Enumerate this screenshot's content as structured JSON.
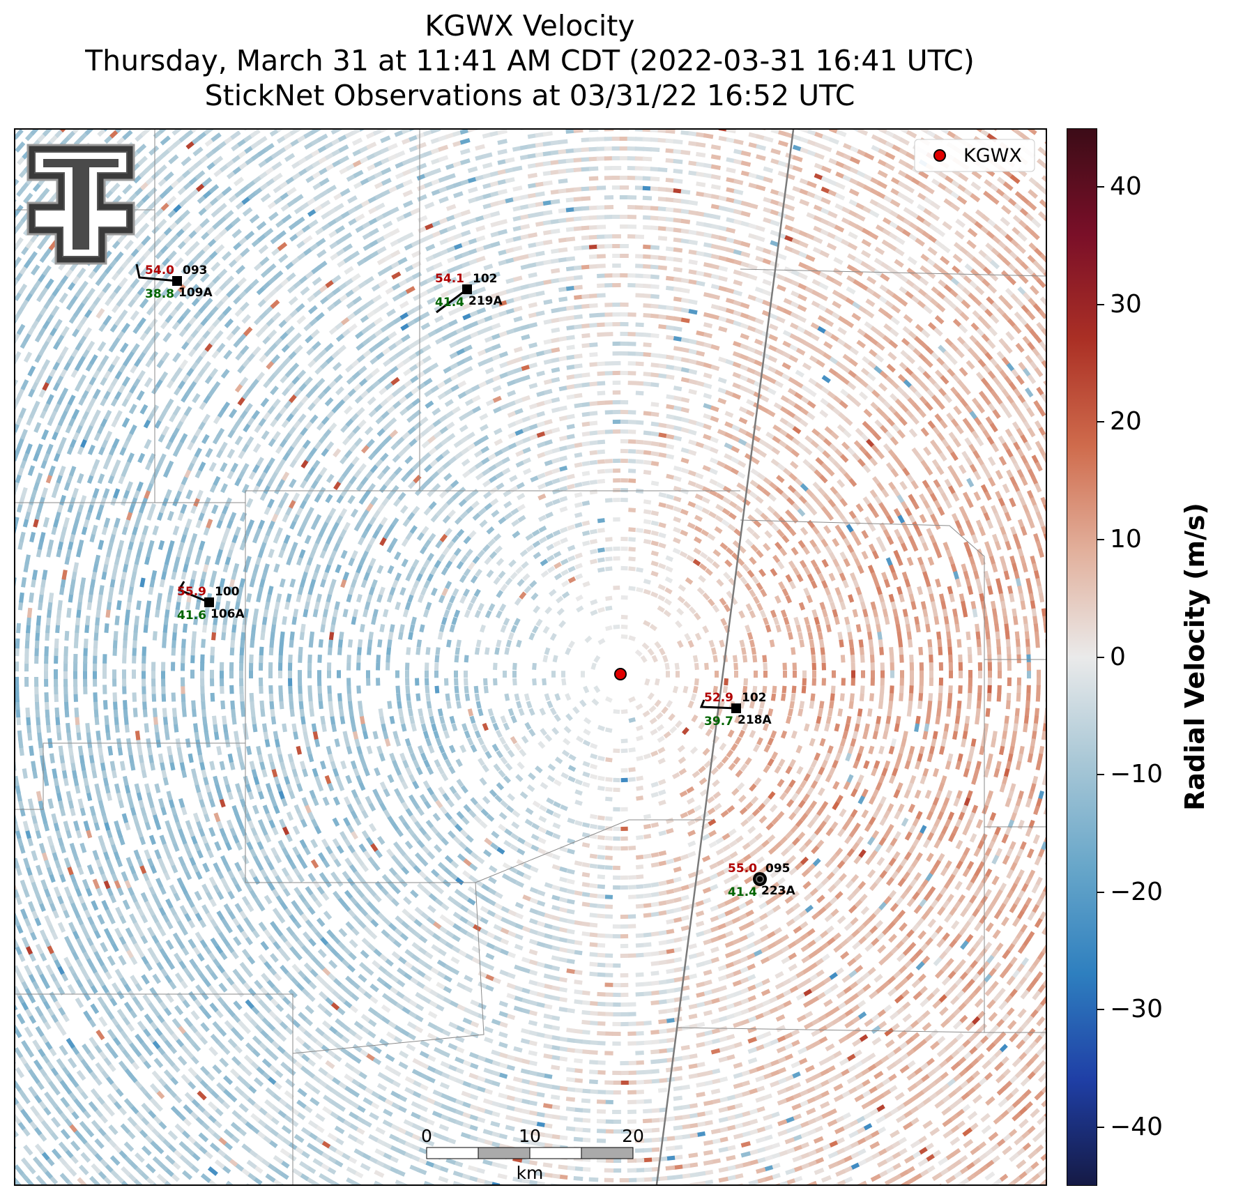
{
  "header": {
    "title": "KGWX Velocity",
    "subtitle": "Thursday, March 31 at 11:41 AM CDT (2022-03-31 16:41 UTC)",
    "subtitle2": "StickNet Observations at 03/31/22 16:52 UTC"
  },
  "legend": {
    "label": "KGWX",
    "marker_color": "#e00000"
  },
  "radar": {
    "name": "KGWX"
  },
  "colorbar": {
    "label": "Radial Velocity (m/s)",
    "range": [
      -45,
      45
    ],
    "ticks": [
      {
        "value": 40,
        "label": "40"
      },
      {
        "value": 30,
        "label": "30"
      },
      {
        "value": 20,
        "label": "20"
      },
      {
        "value": 10,
        "label": "10"
      },
      {
        "value": 0,
        "label": "0"
      },
      {
        "value": -10,
        "label": "−10"
      },
      {
        "value": -20,
        "label": "−20"
      },
      {
        "value": -30,
        "label": "−30"
      },
      {
        "value": -40,
        "label": "−40"
      }
    ],
    "colors": [
      "#151a45",
      "#1f3fa6",
      "#2e7fbf",
      "#67a6c9",
      "#a8c7d6",
      "#eaeaea",
      "#e2b09c",
      "#cf6b4c",
      "#ab3025",
      "#7a0f28",
      "#3c0c17"
    ]
  },
  "stations": [
    {
      "id": "109A",
      "temp": "54.0",
      "dew": "38.8",
      "dir": "093",
      "marker": "square"
    },
    {
      "id": "219A",
      "temp": "54.1",
      "dew": "41.4",
      "dir": "102",
      "marker": "square"
    },
    {
      "id": "106A",
      "temp": "55.9",
      "dew": "41.6",
      "dir": "100",
      "marker": "square"
    },
    {
      "id": "218A",
      "temp": "52.9",
      "dew": "39.7",
      "dir": "102",
      "marker": "square"
    },
    {
      "id": "223A",
      "temp": "55.0",
      "dew": "41.4",
      "dir": "095",
      "marker": "circle"
    }
  ],
  "colors": {
    "temp": "#b00000",
    "dew": "#006400",
    "inbound": "#3a86b8",
    "outbound": "#c65a3c"
  },
  "scalebar": {
    "ticks": [
      "0",
      "10",
      "20"
    ],
    "unit": "km"
  },
  "logo": {
    "text": "T"
  }
}
